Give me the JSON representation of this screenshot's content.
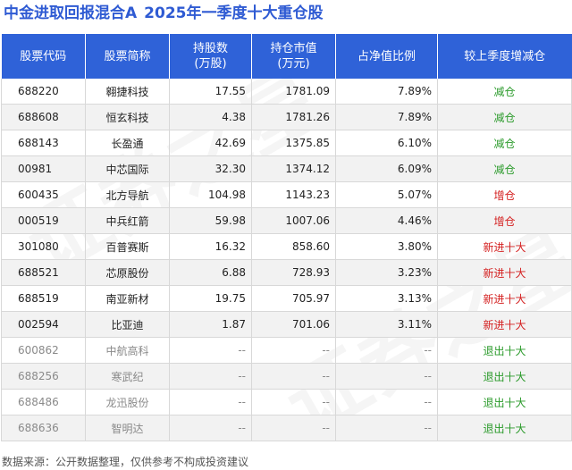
{
  "title": {
    "fund": "中金进取回报混合A",
    "subtitle": "2025年一季度十大重仓股"
  },
  "colors": {
    "title": "#2f5bd3",
    "header_bg": "#2f62d8",
    "decrease": "#2a9a2a",
    "increase": "#d42020",
    "new_in": "#d42020",
    "exited": "#2a9a2a"
  },
  "table": {
    "headers": [
      "股票代码",
      "股票简称",
      "持股数\n(万股)",
      "持仓市值\n(万元)",
      "占净值比例",
      "较上季度增减仓"
    ],
    "rows": [
      {
        "code": "688220",
        "name": "翱捷科技",
        "shares": "17.55",
        "value": "1781.09",
        "ratio": "7.89%",
        "change": "减仓",
        "type": "dec"
      },
      {
        "code": "688608",
        "name": "恒玄科技",
        "shares": "4.38",
        "value": "1781.26",
        "ratio": "7.89%",
        "change": "减仓",
        "type": "dec"
      },
      {
        "code": "688143",
        "name": "长盈通",
        "shares": "42.69",
        "value": "1375.85",
        "ratio": "6.10%",
        "change": "减仓",
        "type": "dec"
      },
      {
        "code": "00981",
        "name": "中芯国际",
        "shares": "32.30",
        "value": "1374.12",
        "ratio": "6.09%",
        "change": "减仓",
        "type": "dec"
      },
      {
        "code": "600435",
        "name": "北方导航",
        "shares": "104.98",
        "value": "1143.23",
        "ratio": "5.07%",
        "change": "增仓",
        "type": "inc"
      },
      {
        "code": "000519",
        "name": "中兵红箭",
        "shares": "59.98",
        "value": "1007.06",
        "ratio": "4.46%",
        "change": "增仓",
        "type": "inc"
      },
      {
        "code": "301080",
        "name": "百普赛斯",
        "shares": "16.32",
        "value": "858.60",
        "ratio": "3.80%",
        "change": "新进十大",
        "type": "new"
      },
      {
        "code": "688521",
        "name": "芯原股份",
        "shares": "6.88",
        "value": "728.93",
        "ratio": "3.23%",
        "change": "新进十大",
        "type": "new"
      },
      {
        "code": "688519",
        "name": "南亚新材",
        "shares": "19.75",
        "value": "705.97",
        "ratio": "3.13%",
        "change": "新进十大",
        "type": "new"
      },
      {
        "code": "002594",
        "name": "比亚迪",
        "shares": "1.87",
        "value": "701.06",
        "ratio": "3.11%",
        "change": "新进十大",
        "type": "new"
      },
      {
        "code": "600862",
        "name": "中航高科",
        "shares": "--",
        "value": "--",
        "ratio": "--",
        "change": "退出十大",
        "type": "out"
      },
      {
        "code": "688256",
        "name": "寒武纪",
        "shares": "--",
        "value": "--",
        "ratio": "--",
        "change": "退出十大",
        "type": "out"
      },
      {
        "code": "688486",
        "name": "龙迅股份",
        "shares": "--",
        "value": "--",
        "ratio": "--",
        "change": "退出十大",
        "type": "out"
      },
      {
        "code": "688636",
        "name": "智明达",
        "shares": "--",
        "value": "--",
        "ratio": "--",
        "change": "退出十大",
        "type": "out"
      }
    ]
  },
  "source": "数据来源：公开数据整理，仅供参考不构成投资建议",
  "watermark": "证券之星"
}
